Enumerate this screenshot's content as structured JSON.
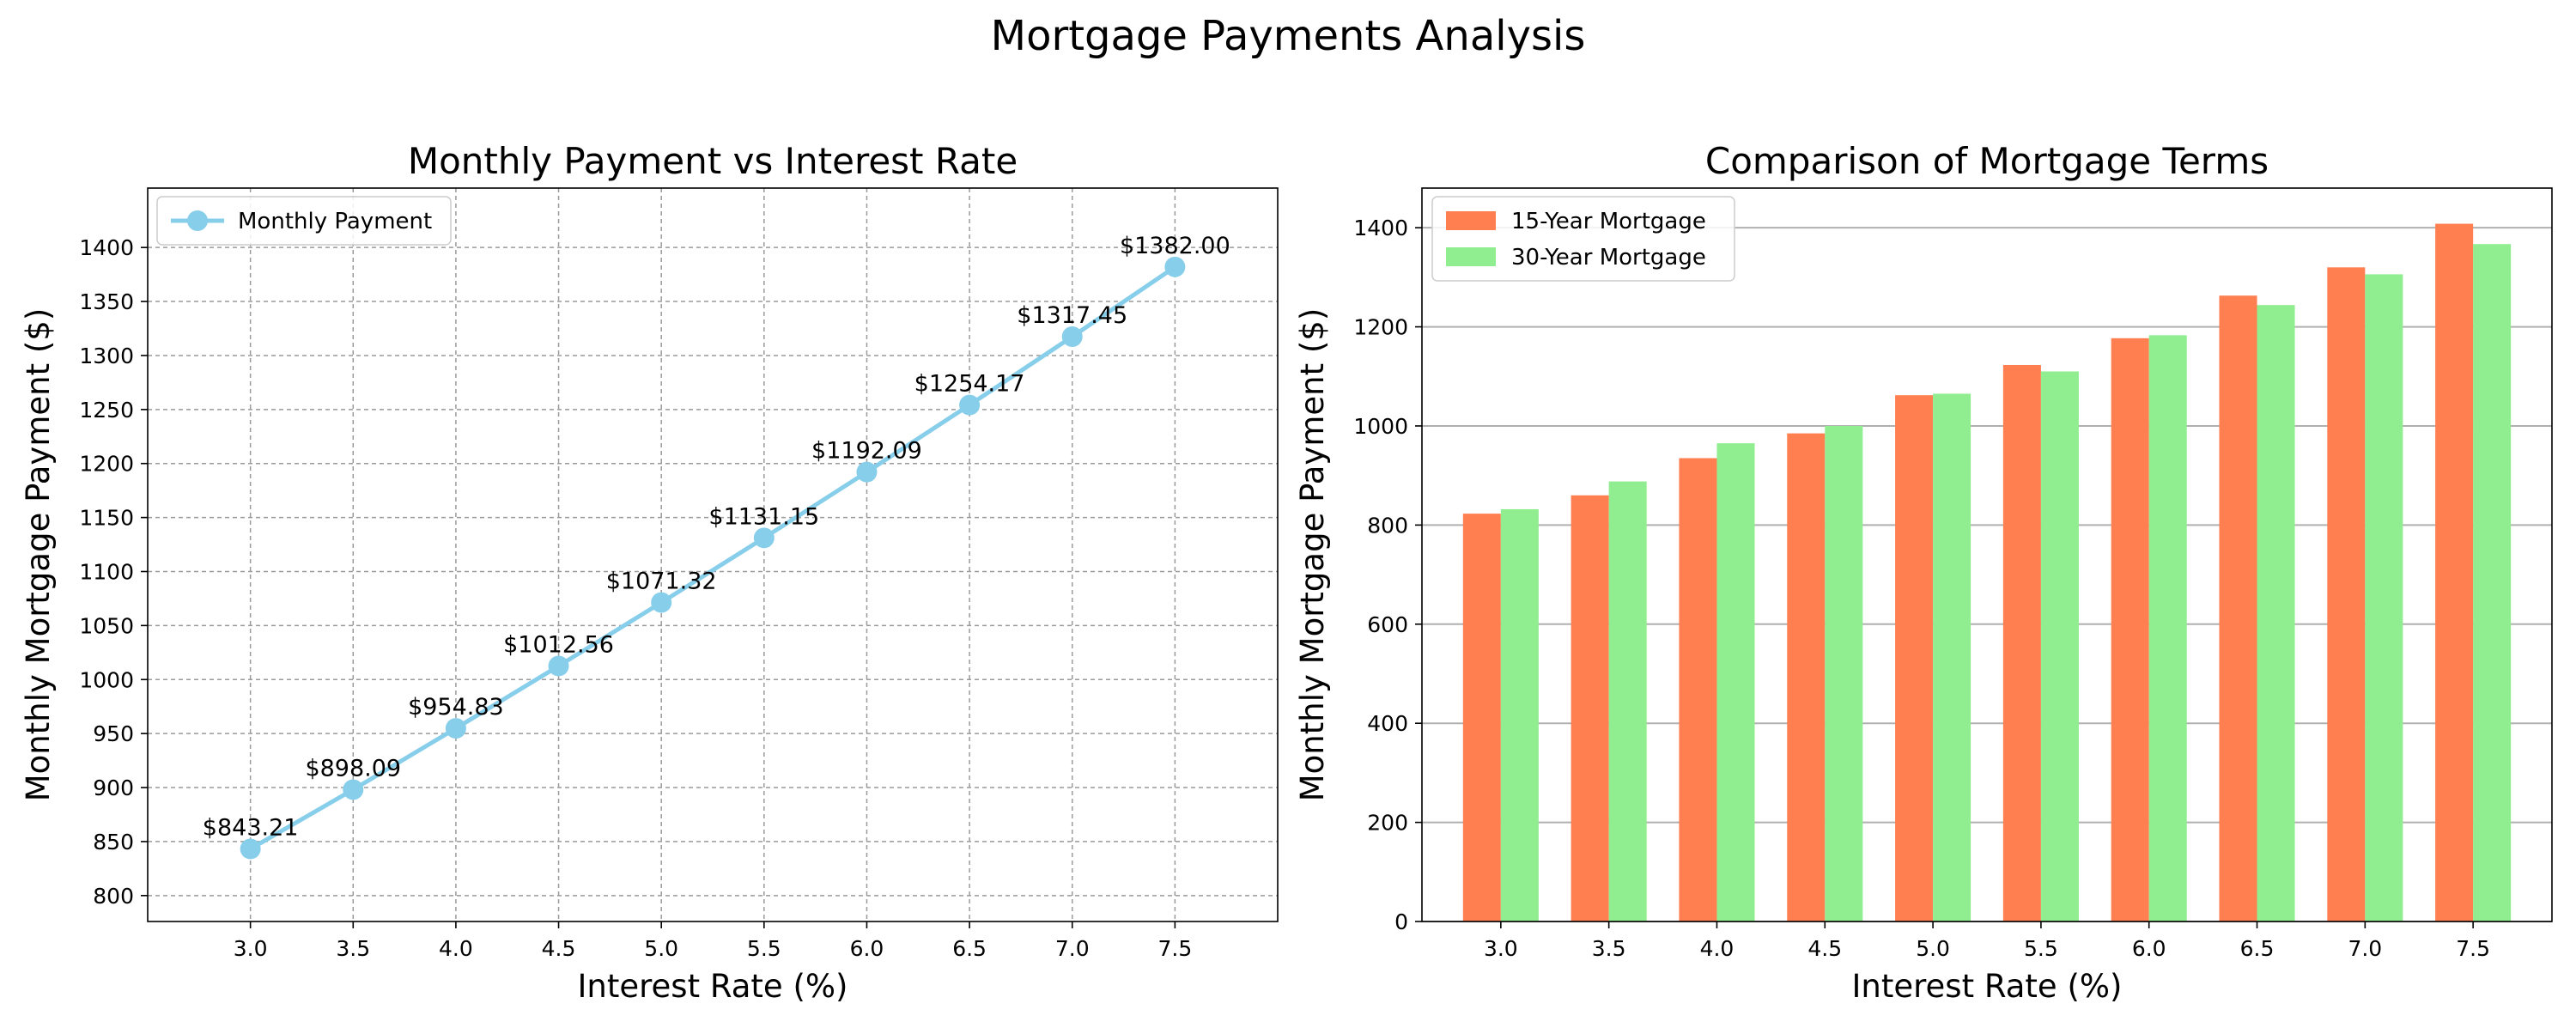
{
  "figure": {
    "title": "Mortgage Payments Analysis"
  },
  "chart_data": [
    {
      "type": "line",
      "title": "Monthly Payment vs Interest Rate",
      "xlabel": "Interest Rate (%)",
      "ylabel": "Monthly Mortgage Payment ($)",
      "x": [
        3.0,
        3.5,
        4.0,
        4.5,
        5.0,
        5.5,
        6.0,
        6.5,
        7.0,
        7.5
      ],
      "x_tick_labels": [
        "3.0",
        "3.5",
        "4.0",
        "4.5",
        "5.0",
        "5.5",
        "6.0",
        "6.5",
        "7.0",
        "7.5"
      ],
      "xlim": [
        2.5,
        8.0
      ],
      "ylim": [
        776,
        1455
      ],
      "y_ticks": [
        800,
        850,
        900,
        950,
        1000,
        1050,
        1100,
        1150,
        1200,
        1250,
        1300,
        1350,
        1400
      ],
      "grid": true,
      "grid_style": "dashed",
      "legend_position": "upper-left",
      "series": [
        {
          "name": "Monthly Payment",
          "color": "#87ceeb",
          "marker": "circle",
          "values": [
            843.21,
            898.09,
            954.83,
            1012.56,
            1071.32,
            1131.15,
            1192.09,
            1254.17,
            1317.45,
            1382.0
          ],
          "data_labels": [
            "$843.21",
            "$898.09",
            "$954.83",
            "$1012.56",
            "$1071.32",
            "$1131.15",
            "$1192.09",
            "$1254.17",
            "$1317.45",
            "$1382.00"
          ]
        }
      ]
    },
    {
      "type": "bar",
      "title": "Comparison of Mortgage Terms",
      "xlabel": "Interest Rate (%)",
      "ylabel": "Monthly Mortgage Payment ($)",
      "categories": [
        "3.0",
        "3.5",
        "4.0",
        "4.5",
        "5.0",
        "5.5",
        "6.0",
        "6.5",
        "7.0",
        "7.5"
      ],
      "ylim": [
        0,
        1480
      ],
      "y_ticks": [
        0,
        200,
        400,
        600,
        800,
        1000,
        1200,
        1400
      ],
      "grid": true,
      "grid_axis": "y",
      "legend_position": "upper-left",
      "series": [
        {
          "name": "15-Year Mortgage",
          "color": "#ff7f50",
          "values": [
            823,
            860,
            935,
            985,
            1062,
            1123,
            1177,
            1263,
            1320,
            1408
          ]
        },
        {
          "name": "30-Year Mortgage",
          "color": "#90ee90",
          "values": [
            832,
            888,
            965,
            1000,
            1065,
            1110,
            1183,
            1244,
            1306,
            1367
          ]
        }
      ]
    }
  ]
}
